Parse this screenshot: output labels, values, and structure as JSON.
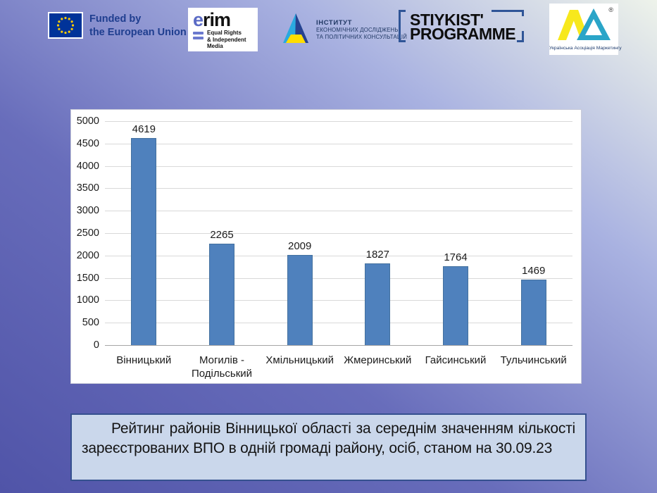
{
  "header": {
    "eu": {
      "line1": "Funded by",
      "line2": "the European Union",
      "flag_blue": "#003399",
      "star_yellow": "#ffcc00"
    },
    "erim": {
      "word_first": "e",
      "word_rest": "rim",
      "tagline": [
        "Equal Rights",
        "& Independent",
        "Media"
      ],
      "accent": "#5b6bc5"
    },
    "ier": {
      "line1": "ІНСТИТУТ",
      "line2": "ЕКОНОМІЧНИХ ДОСЛІДЖЕНЬ",
      "line3": "ТА ПОЛІТИЧНИХ КОНСУЛЬТАЦІЙ"
    },
    "stiykist": {
      "line1": "STIYKIST'",
      "line2": "PROGRAMME",
      "bracket_color": "#2f5597"
    },
    "uam": {
      "registered": "®",
      "caption": "Українська Асоціація Маркетингу",
      "yellow": "#f7e81c",
      "teal": "#2aa5c8"
    }
  },
  "chart_data": {
    "type": "bar",
    "categories": [
      "Вінницький",
      "Могилів - Подільський",
      "Хмільницький",
      "Жмеринський",
      "Гайсинський",
      "Тульчинський"
    ],
    "values": [
      4619,
      2265,
      2009,
      1827,
      1764,
      1469
    ],
    "title": "",
    "xlabel": "",
    "ylabel": "",
    "ylim": [
      0,
      5000
    ],
    "ytick_step": 500,
    "bar_color": "#4f81bd",
    "grid": true,
    "legend": false,
    "data_labels": true
  },
  "caption": {
    "text": "Рейтинг районів Вінницької області за середнім значенням кількості зареєстрованих ВПО  в одній громаді району, осіб, станом на 30.09.23"
  }
}
